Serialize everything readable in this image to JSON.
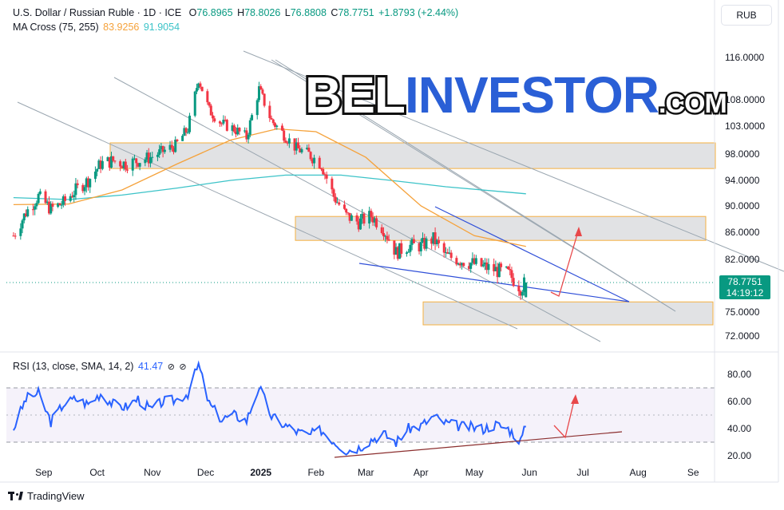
{
  "header": {
    "symbol_line": "U.S. Dollar / Russian Ruble · 1D · ICE",
    "o_label": "O",
    "o_value": "76.8965",
    "h_label": "H",
    "h_value": "78.8026",
    "l_label": "L",
    "l_value": "76.8808",
    "c_label": "C",
    "c_value": "78.7751",
    "change": "+1.8793 (+2.44%)",
    "ma_label": "MA Cross (75, 255)",
    "ma_fast": "83.9256",
    "ma_slow": "91.9054",
    "rsi_label": "RSI (13, close, SMA, 14, 2)",
    "rsi_value": "41.47",
    "icon_name": "eye-off-icon"
  },
  "unit_badge": "RUB",
  "last_price": "78.7751",
  "countdown": "14:19:12",
  "watermark": {
    "part1": "BEL",
    "part2": "INVESTOR",
    "part3": ".COM"
  },
  "footer": {
    "brand": "TradingView"
  },
  "colors": {
    "up": "#089981",
    "down": "#f23645",
    "ma_fast": "#f5a23b",
    "ma_slow": "#3cc3c8",
    "rsi": "#2962ff",
    "zone_border": "#f5b041",
    "trend_blue": "#2f4fd8",
    "trend_gray": "#9aa6b0",
    "rsi_support": "#8b2e2e",
    "arrow": "#e8484a"
  },
  "chart_data": [
    {
      "type": "candlestick",
      "title": "U.S. Dollar / Russian Ruble · 1D · ICE",
      "yticks": [
        116.0,
        108.0,
        103.0,
        98.0,
        94.0,
        90.0,
        86.0,
        82.0,
        75.0,
        72.0
      ],
      "ytick_labels": [
        "116.0000",
        "108.0000",
        "103.0000",
        "98.0000",
        "94.0000",
        "90.0000",
        "86.0000",
        "82.0000",
        "75.0000",
        "72.0000"
      ],
      "x_tick_labels": [
        "Sep",
        "Oct",
        "Nov",
        "Dec",
        "2025",
        "Feb",
        "Mar",
        "Apr",
        "May",
        "Jun",
        "Jul",
        "Aug",
        "Se"
      ],
      "close_path": [
        [
          "2024-08-15",
          85.5
        ],
        [
          "2024-08-22",
          89.0
        ],
        [
          "2024-08-29",
          91.5
        ],
        [
          "2024-09-05",
          89.5
        ],
        [
          "2024-09-12",
          90.5
        ],
        [
          "2024-09-19",
          92.5
        ],
        [
          "2024-09-26",
          94.0
        ],
        [
          "2024-10-03",
          96.5
        ],
        [
          "2024-10-10",
          97.0
        ],
        [
          "2024-10-17",
          96.5
        ],
        [
          "2024-10-24",
          97.0
        ],
        [
          "2024-10-31",
          97.5
        ],
        [
          "2024-11-07",
          98.5
        ],
        [
          "2024-11-14",
          99.5
        ],
        [
          "2024-11-21",
          102.5
        ],
        [
          "2024-11-27",
          112.0
        ],
        [
          "2024-12-03",
          106.0
        ],
        [
          "2024-12-10",
          103.5
        ],
        [
          "2024-12-17",
          102.5
        ],
        [
          "2024-12-24",
          101.0
        ],
        [
          "2024-12-31",
          110.0
        ],
        [
          "2025-01-07",
          104.0
        ],
        [
          "2025-01-14",
          101.5
        ],
        [
          "2025-01-21",
          99.0
        ],
        [
          "2025-01-28",
          98.0
        ],
        [
          "2025-02-04",
          96.5
        ],
        [
          "2025-02-11",
          91.5
        ],
        [
          "2025-02-18",
          88.5
        ],
        [
          "2025-02-25",
          87.5
        ],
        [
          "2025-03-04",
          88.5
        ],
        [
          "2025-03-11",
          86.5
        ],
        [
          "2025-03-18",
          83.0
        ],
        [
          "2025-03-25",
          84.0
        ],
        [
          "2025-04-01",
          84.0
        ],
        [
          "2025-04-08",
          85.0
        ],
        [
          "2025-04-15",
          82.5
        ],
        [
          "2025-04-22",
          82.0
        ],
        [
          "2025-04-29",
          81.5
        ],
        [
          "2025-05-06",
          81.0
        ],
        [
          "2025-05-13",
          80.5
        ],
        [
          "2025-05-20",
          80.0
        ],
        [
          "2025-05-27",
          78.2
        ],
        [
          "2025-05-30",
          78.8
        ]
      ],
      "last": {
        "open": 76.8965,
        "high": 78.8026,
        "low": 76.8808,
        "close": 78.7751
      },
      "ma_fast": {
        "name": "MA Cross (75, 255)",
        "last": 83.9256,
        "points": [
          [
            "2024-08-15",
            90.2
          ],
          [
            "2024-09-15",
            90.3
          ],
          [
            "2024-10-15",
            92.5
          ],
          [
            "2024-11-15",
            96.5
          ],
          [
            "2024-12-15",
            100.5
          ],
          [
            "2025-01-10",
            102.5
          ],
          [
            "2025-02-01",
            102.0
          ],
          [
            "2025-03-01",
            97.5
          ],
          [
            "2025-04-01",
            90.0
          ],
          [
            "2025-05-01",
            85.5
          ],
          [
            "2025-05-30",
            83.9
          ]
        ]
      },
      "ma_slow": {
        "name": "MA Cross (75, 255)",
        "last": 91.9054,
        "points": [
          [
            "2024-08-15",
            91.3
          ],
          [
            "2024-09-15",
            91.0
          ],
          [
            "2024-10-15",
            91.7
          ],
          [
            "2024-11-15",
            92.8
          ],
          [
            "2024-12-15",
            94.0
          ],
          [
            "2025-01-15",
            94.8
          ],
          [
            "2025-02-15",
            94.8
          ],
          [
            "2025-03-15",
            94.0
          ],
          [
            "2025-04-15",
            93.0
          ],
          [
            "2025-05-30",
            91.9
          ]
        ]
      },
      "zones": [
        [
          95.8,
          100.0
        ],
        [
          84.8,
          88.4
        ],
        [
          73.4,
          76.3
        ]
      ],
      "ylim": [
        70.5,
        120.0
      ]
    },
    {
      "type": "line",
      "title": "RSI (13, close, SMA, 14, 2)",
      "yticks": [
        80.0,
        60.0,
        40.0,
        20.0
      ],
      "ytick_labels": [
        "80.00",
        "60.00",
        "40.00",
        "20.00"
      ],
      "bands": [
        30,
        70
      ],
      "midline": 50,
      "series": [
        {
          "name": "RSI (13, close, SMA, 14, 2)",
          "last": 41.47,
          "points": [
            [
              "2024-08-15",
              40
            ],
            [
              "2024-08-22",
              62
            ],
            [
              "2024-08-29",
              66
            ],
            [
              "2024-09-05",
              45
            ],
            [
              "2024-09-12",
              58
            ],
            [
              "2024-09-19",
              62
            ],
            [
              "2024-09-26",
              58
            ],
            [
              "2024-10-03",
              66
            ],
            [
              "2024-10-10",
              58
            ],
            [
              "2024-10-17",
              56
            ],
            [
              "2024-10-24",
              62
            ],
            [
              "2024-10-31",
              54
            ],
            [
              "2024-11-07",
              60
            ],
            [
              "2024-11-14",
              61
            ],
            [
              "2024-11-21",
              66
            ],
            [
              "2024-11-27",
              87
            ],
            [
              "2024-12-03",
              58
            ],
            [
              "2024-12-10",
              47
            ],
            [
              "2024-12-17",
              50
            ],
            [
              "2024-12-24",
              46
            ],
            [
              "2024-12-31",
              71
            ],
            [
              "2025-01-07",
              49
            ],
            [
              "2025-01-14",
              43
            ],
            [
              "2025-01-21",
              38
            ],
            [
              "2025-01-28",
              35
            ],
            [
              "2025-02-04",
              39
            ],
            [
              "2025-02-11",
              31
            ],
            [
              "2025-02-18",
              24
            ],
            [
              "2025-02-25",
              26
            ],
            [
              "2025-03-04",
              32
            ],
            [
              "2025-03-11",
              36
            ],
            [
              "2025-03-18",
              30
            ],
            [
              "2025-03-25",
              40
            ],
            [
              "2025-04-01",
              42
            ],
            [
              "2025-04-08",
              49
            ],
            [
              "2025-04-15",
              44
            ],
            [
              "2025-04-22",
              42
            ],
            [
              "2025-04-29",
              41
            ],
            [
              "2025-05-06",
              40
            ],
            [
              "2025-05-13",
              43
            ],
            [
              "2025-05-20",
              40
            ],
            [
              "2025-05-27",
              31
            ],
            [
              "2025-05-30",
              41.5
            ]
          ]
        }
      ],
      "ylim": [
        17.0,
        90.0
      ]
    }
  ]
}
